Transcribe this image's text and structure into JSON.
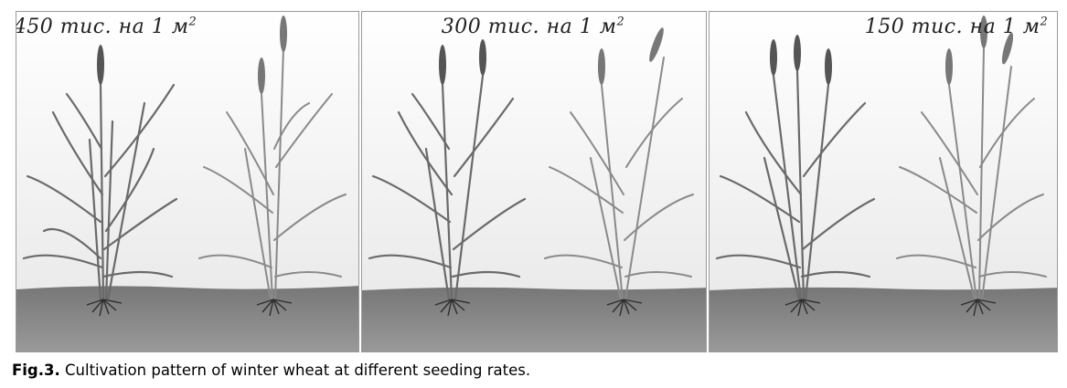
{
  "figure": {
    "panels": [
      {
        "label_prefix": "450 тис. на 1 м",
        "label_sup": "2"
      },
      {
        "label_prefix": "300 тис. на 1 м",
        "label_sup": "2"
      },
      {
        "label_prefix": "150 тис. на 1 м",
        "label_sup": "2"
      }
    ],
    "caption_label": "Fig.3.",
    "caption_text": " Cultivation pattern of winter wheat at different seeding rates."
  },
  "colors": {
    "sky_top": "#ffffff",
    "sky_bottom": "#e9e9e9",
    "soil": "#8a8a8a",
    "soil_dark": "#6e6e6e",
    "plant": "#6a6a6a",
    "roots": "#2e2e2e"
  }
}
